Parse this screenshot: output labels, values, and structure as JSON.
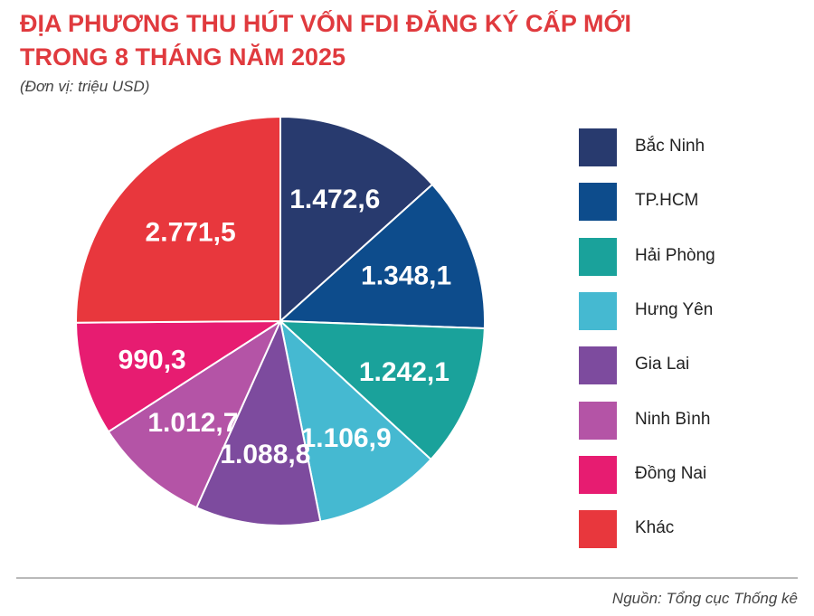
{
  "title_line1": "ĐỊA PHƯƠNG THU HÚT VỐN FDI ĐĂNG KÝ CẤP MỚI",
  "title_line2": "TRONG 8 THÁNG NĂM 2025",
  "unit": "(Đơn vị: triệu USD)",
  "source": "Nguồn: Tổng cục Thống kê",
  "chart_data": {
    "type": "pie",
    "title": "ĐỊA PHƯƠNG THU HÚT VỐN FDI ĐĂNG KÝ CẤP MỚI TRONG 8 THÁNG NĂM 2025",
    "unit": "(Đơn vị: triệu USD)",
    "legend_position": "right",
    "slices": [
      {
        "label": "Bắc Ninh",
        "value": 1472.6,
        "display": "1.472,6",
        "color": "#283a6e"
      },
      {
        "label": "TP.HCM",
        "value": 1348.1,
        "display": "1.348,1",
        "color": "#0d4c8c"
      },
      {
        "label": "Hải Phòng",
        "value": 1242.1,
        "display": "1.242,1",
        "color": "#1aa29b"
      },
      {
        "label": "Hưng Yên",
        "value": 1106.9,
        "display": "1.106,9",
        "color": "#45b9d1"
      },
      {
        "label": "Gia Lai",
        "value": 1088.8,
        "display": "1.088,8",
        "color": "#7d4b9e"
      },
      {
        "label": "Ninh Bình",
        "value": 1012.7,
        "display": "1.012,7",
        "color": "#b454a6"
      },
      {
        "label": "Đồng Nai",
        "value": 990.3,
        "display": "990,3",
        "color": "#e71c71"
      },
      {
        "label": "Khác",
        "value": 2771.5,
        "display": "2.771,5",
        "color": "#e8373d"
      }
    ]
  }
}
